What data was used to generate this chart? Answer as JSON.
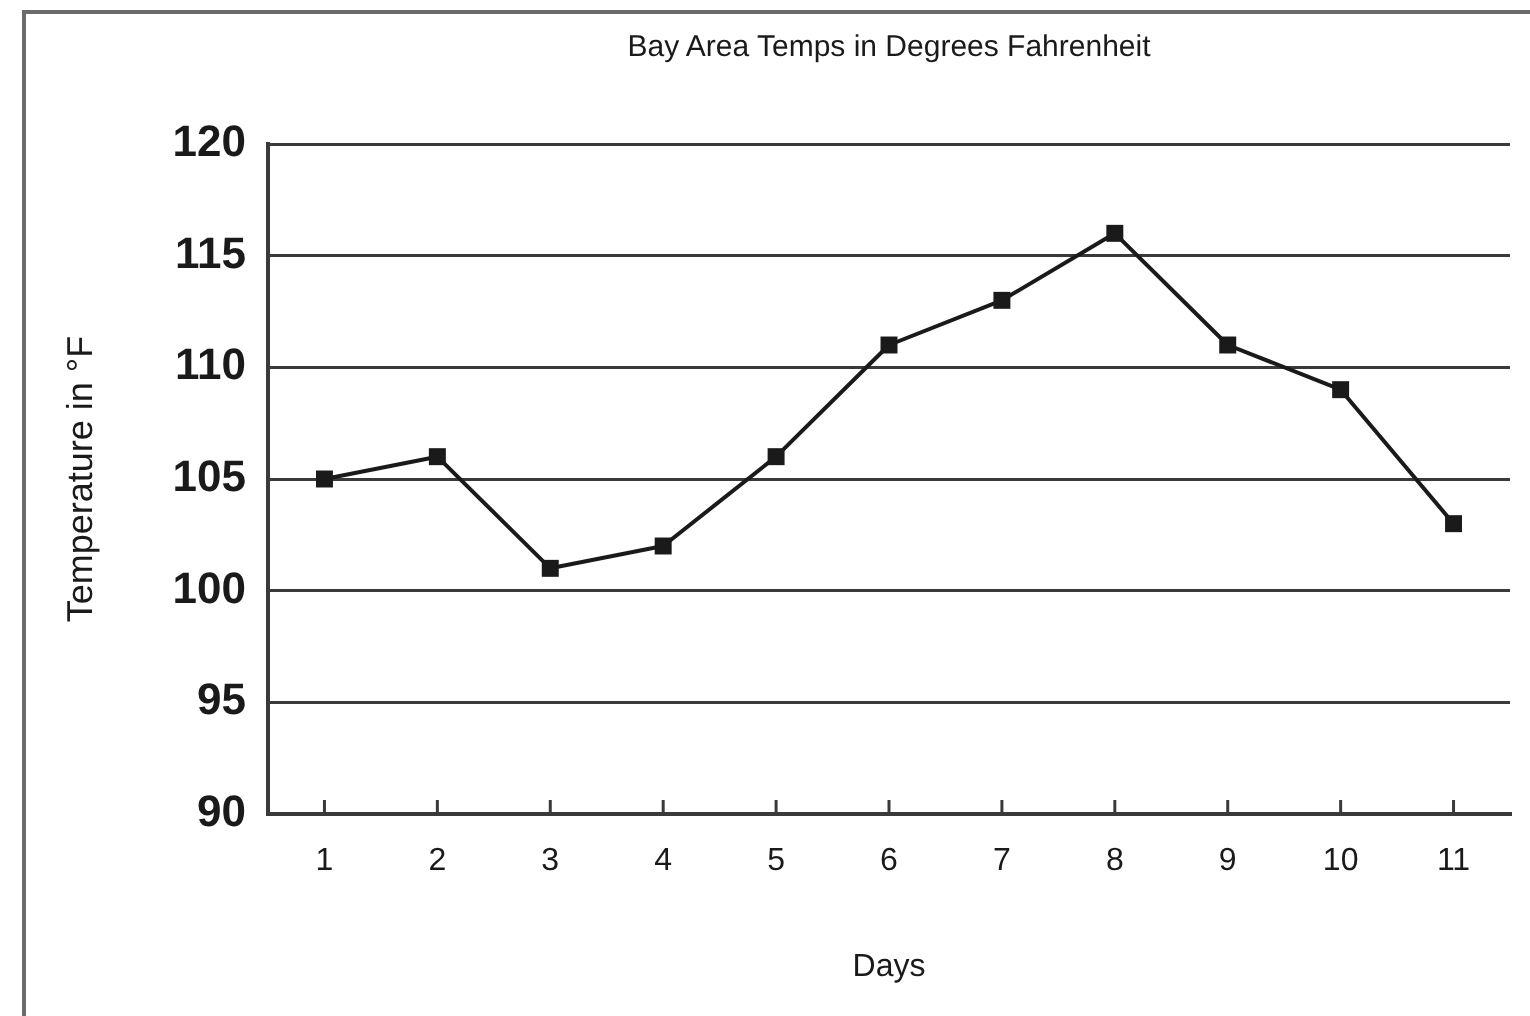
{
  "chart_data": {
    "type": "line",
    "title": "Bay Area Temps in Degrees Fahrenheit",
    "xlabel": "Days",
    "ylabel": "Temperature in °F",
    "categories": [
      "1",
      "2",
      "3",
      "4",
      "5",
      "6",
      "7",
      "8",
      "9",
      "10",
      "11"
    ],
    "values": [
      105,
      106,
      101,
      102,
      106,
      111,
      113,
      116,
      111,
      109,
      103
    ],
    "color": "#1a1a1a",
    "ylim": [
      90,
      120
    ],
    "yticks": [
      90,
      95,
      100,
      105,
      110,
      115,
      120
    ],
    "grid": "y",
    "marker": "square",
    "line_style": "solid"
  }
}
